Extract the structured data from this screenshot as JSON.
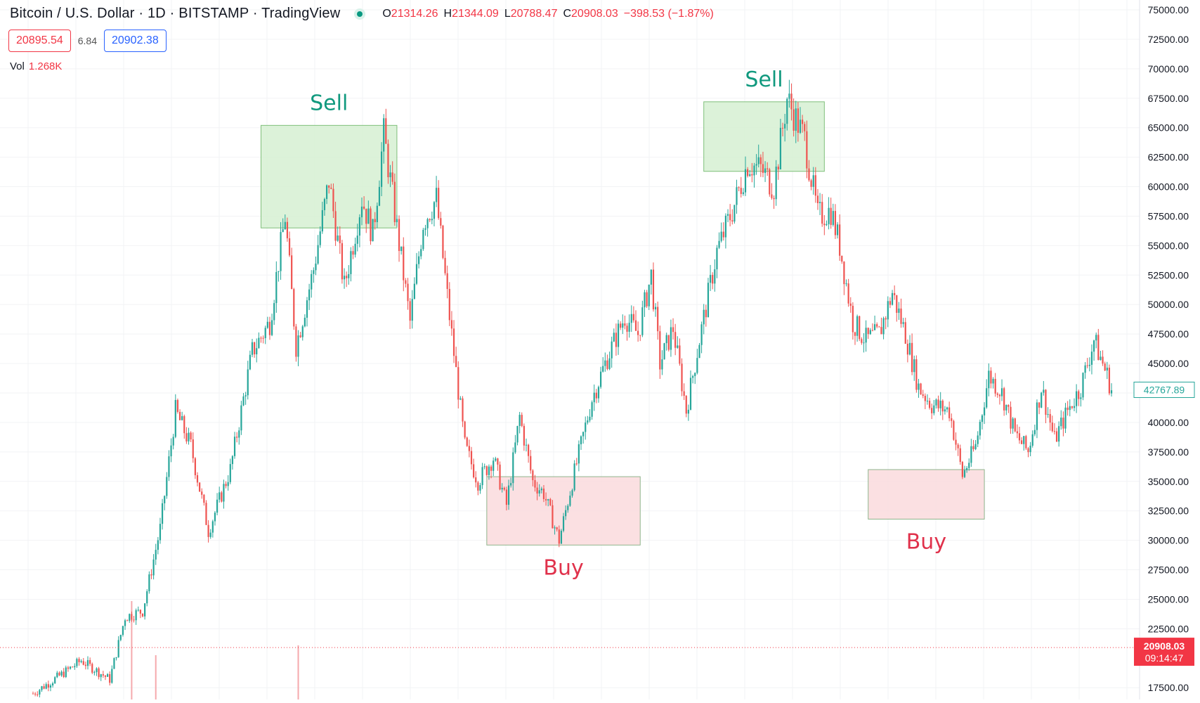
{
  "header": {
    "symbol_title": "Bitcoin / U.S. Dollar · 1D · BITSTAMP · TradingView",
    "ohlc": {
      "o_label": "O",
      "o_value": "21314.26",
      "h_label": "H",
      "h_value": "21344.09",
      "l_label": "L",
      "l_value": "20788.47",
      "c_label": "C",
      "c_value": "20908.03",
      "change": "−398.53 (−1.87%)"
    }
  },
  "quote": {
    "bid": "20895.54",
    "spread": "6.84",
    "ask": "20902.38"
  },
  "volume": {
    "label": "Vol",
    "value": "1.268K"
  },
  "colors": {
    "up": "#26a69a",
    "down": "#ef5350",
    "sell_zone_fill": "#d6f0d2",
    "sell_zone_border": "#7fbf7a",
    "buy_zone_fill": "#fadadd",
    "buy_zone_border": "#8fb58c",
    "sell_text": "#10997e",
    "buy_text": "#e0314b",
    "axis_text": "#131722",
    "current_price_bg": "#f23645"
  },
  "price_axis": {
    "current_price_label": "20908.03",
    "countdown_label": "09:14:47",
    "last_marker_label": "42767.89"
  },
  "chart_data": {
    "type": "candlestick",
    "ylim": [
      15000,
      75000
    ],
    "y_ticks": [
      17500,
      22500,
      25000,
      27500,
      30000,
      32500,
      35000,
      37500,
      40000,
      42500,
      45000,
      47500,
      50000,
      52500,
      55000,
      57500,
      60000,
      62500,
      65000,
      67500,
      70000,
      72500,
      75000
    ],
    "current_price": 20908.03,
    "last_marker_price": 42767.89,
    "anchors": [
      [
        0,
        17000
      ],
      [
        12,
        18500
      ],
      [
        22,
        19800
      ],
      [
        35,
        18200
      ],
      [
        42,
        23500
      ],
      [
        50,
        24000
      ],
      [
        58,
        31000
      ],
      [
        65,
        41000
      ],
      [
        72,
        38000
      ],
      [
        80,
        30800
      ],
      [
        90,
        36000
      ],
      [
        100,
        46000
      ],
      [
        108,
        48500
      ],
      [
        115,
        57500
      ],
      [
        120,
        46500
      ],
      [
        128,
        53000
      ],
      [
        135,
        60500
      ],
      [
        142,
        51500
      ],
      [
        150,
        59000
      ],
      [
        155,
        56000
      ],
      [
        160,
        64500
      ],
      [
        166,
        56500
      ],
      [
        172,
        48500
      ],
      [
        178,
        57000
      ],
      [
        184,
        59000
      ],
      [
        190,
        49000
      ],
      [
        197,
        38000
      ],
      [
        203,
        35000
      ],
      [
        210,
        37000
      ],
      [
        216,
        33000
      ],
      [
        222,
        40500
      ],
      [
        228,
        35000
      ],
      [
        233,
        34000
      ],
      [
        240,
        30000
      ],
      [
        246,
        35000
      ],
      [
        255,
        42000
      ],
      [
        262,
        45500
      ],
      [
        270,
        49000
      ],
      [
        276,
        47500
      ],
      [
        282,
        52500
      ],
      [
        286,
        45000
      ],
      [
        292,
        48000
      ],
      [
        298,
        41000
      ],
      [
        304,
        47000
      ],
      [
        312,
        54500
      ],
      [
        320,
        58500
      ],
      [
        326,
        62000
      ],
      [
        332,
        61500
      ],
      [
        338,
        60000
      ],
      [
        344,
        67500
      ],
      [
        352,
        64000
      ],
      [
        358,
        57500
      ],
      [
        364,
        58000
      ],
      [
        368,
        55000
      ],
      [
        374,
        48500
      ],
      [
        380,
        47000
      ],
      [
        386,
        47500
      ],
      [
        392,
        51000
      ],
      [
        398,
        47500
      ],
      [
        404,
        43000
      ],
      [
        410,
        41500
      ],
      [
        418,
        41000
      ],
      [
        424,
        35500
      ],
      [
        430,
        38000
      ],
      [
        436,
        44000
      ],
      [
        442,
        42500
      ],
      [
        448,
        39000
      ],
      [
        454,
        37500
      ],
      [
        460,
        43000
      ],
      [
        466,
        38500
      ],
      [
        472,
        41000
      ],
      [
        478,
        43000
      ],
      [
        484,
        47000
      ],
      [
        490,
        44000
      ],
      [
        492,
        42767.89
      ]
    ],
    "zones": [
      {
        "kind": "sell",
        "label": "Sell",
        "day_start": 104,
        "day_end": 166,
        "price_low": 56500,
        "price_high": 65200
      },
      {
        "kind": "buy",
        "label": "Buy",
        "day_start": 207,
        "day_end": 277,
        "price_low": 29600,
        "price_high": 35400
      },
      {
        "kind": "sell",
        "label": "Sell",
        "day_start": 306,
        "day_end": 361,
        "price_low": 61300,
        "price_high": 67200
      },
      {
        "kind": "buy",
        "label": "Buy",
        "day_start": 381,
        "day_end": 434,
        "price_low": 31800,
        "price_high": 36000
      }
    ],
    "volume_spikes": [
      {
        "day": 45,
        "value": 1.0
      },
      {
        "day": 56,
        "value": 0.45
      },
      {
        "day": 121,
        "value": 0.55
      }
    ]
  }
}
